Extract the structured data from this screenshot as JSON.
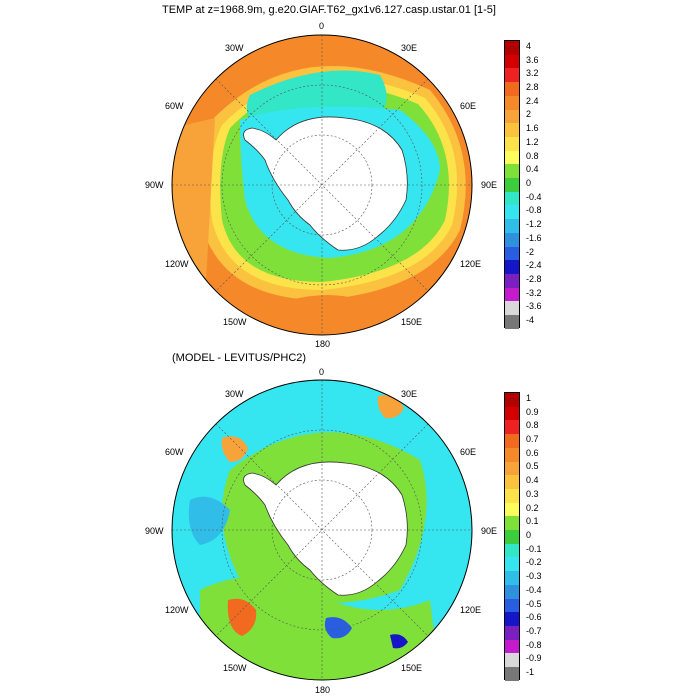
{
  "top_panel": {
    "title": "TEMP at z=1968.9m, g.e20.GIAF.T62_gx1v6.127.casp.ustar.01 [1-5]",
    "lon_labels": [
      "0",
      "30E",
      "60E",
      "90E",
      "120E",
      "150E",
      "180",
      "150W",
      "120W",
      "90W",
      "60W",
      "30W"
    ],
    "colorbar": {
      "labels": [
        "4",
        "3.6",
        "3.2",
        "2.8",
        "2.4",
        "2",
        "1.6",
        "1.2",
        "0.8",
        "0.4",
        "0",
        "-0.4",
        "-0.8",
        "-1.2",
        "-1.6",
        "-2",
        "-2.4",
        "-2.8",
        "-3.2",
        "-3.6",
        "-4"
      ],
      "colors": [
        "#b30000",
        "#d40000",
        "#ee2222",
        "#f26a1f",
        "#f5892a",
        "#f7a33a",
        "#fbc240",
        "#fde34a",
        "#fcfc5c",
        "#7fe03a",
        "#3ccc3c",
        "#33e6c6",
        "#35e6f0",
        "#30bde8",
        "#2d91e0",
        "#2a5ee0",
        "#1616c8",
        "#7a1fc0",
        "#c41ccc",
        "#d8d8d8",
        "#777777"
      ]
    }
  },
  "bottom_panel": {
    "title": "(MODEL - LEVITUS/PHC2)",
    "lon_labels": [
      "0",
      "30E",
      "60E",
      "90E",
      "120E",
      "150E",
      "180",
      "150W",
      "120W",
      "90W",
      "60W",
      "30W"
    ],
    "colorbar": {
      "labels": [
        "1",
        "0.9",
        "0.8",
        "0.7",
        "0.6",
        "0.5",
        "0.4",
        "0.3",
        "0.2",
        "0.1",
        "0",
        "-0.1",
        "-0.2",
        "-0.3",
        "-0.4",
        "-0.5",
        "-0.6",
        "-0.7",
        "-0.8",
        "-0.9",
        "-1"
      ],
      "colors": [
        "#b30000",
        "#d40000",
        "#ee2222",
        "#f26a1f",
        "#f5892a",
        "#f7a33a",
        "#fbc240",
        "#fde34a",
        "#fcfc5c",
        "#7fe03a",
        "#3ccc3c",
        "#33e6c6",
        "#35e6f0",
        "#30bde8",
        "#2d91e0",
        "#2a5ee0",
        "#1616c8",
        "#7a1fc0",
        "#c41ccc",
        "#d8d8d8",
        "#777777"
      ]
    }
  }
}
